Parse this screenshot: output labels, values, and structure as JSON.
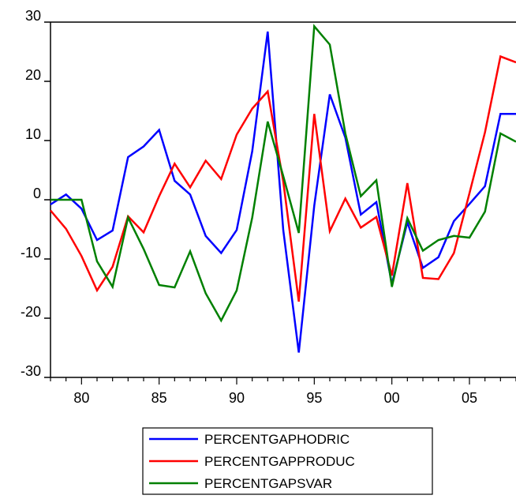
{
  "chart_data": {
    "type": "line",
    "title": "",
    "xlabel": "",
    "ylabel": "",
    "x": [
      1978,
      1979,
      1980,
      1981,
      1982,
      1983,
      1984,
      1985,
      1986,
      1987,
      1988,
      1989,
      1990,
      1991,
      1992,
      1993,
      1994,
      1995,
      1996,
      1997,
      1998,
      1999,
      2000,
      2001,
      2002,
      2003,
      2004,
      2005,
      2006,
      2007,
      2008
    ],
    "xlim": [
      1978,
      2008
    ],
    "ylim": [
      -30,
      30
    ],
    "yticks": [
      -30,
      -20,
      -10,
      0,
      10,
      20,
      30
    ],
    "ytick_labels": [
      "-30",
      "-20",
      "-10",
      "0",
      "10",
      "20",
      "30"
    ],
    "xticks": [
      1980,
      1985,
      1990,
      1995,
      2000,
      2005
    ],
    "xtick_labels": [
      "80",
      "85",
      "90",
      "95",
      "00",
      "05"
    ],
    "grid": false,
    "legend_position": "bottom",
    "series": [
      {
        "name": "PERCENTGAPHODRIC",
        "color": "#0000ff",
        "values": [
          -0.8,
          0.9,
          -1.5,
          -6.8,
          -5.2,
          7.2,
          9.0,
          11.8,
          3.2,
          0.9,
          -6.1,
          -9.0,
          -5.1,
          8.2,
          28.4,
          -5.1,
          -25.8,
          -1.0,
          17.8,
          10.5,
          -2.5,
          -0.4,
          -14.2,
          -3.8,
          -11.5,
          -9.7,
          -3.6,
          -0.7,
          2.3,
          14.5,
          14.5
        ]
      },
      {
        "name": "PERCENTGAPPRODUC",
        "color": "#ff0000",
        "values": [
          -1.8,
          -4.9,
          -9.5,
          -15.3,
          -11.3,
          -2.8,
          -5.5,
          0.6,
          6.1,
          2.1,
          6.6,
          3.5,
          11.0,
          15.4,
          18.3,
          3.1,
          -17.2,
          14.5,
          -5.3,
          0.2,
          -4.7,
          -2.9,
          -12.8,
          2.8,
          -13.2,
          -13.4,
          -9.0,
          1.1,
          11.4,
          24.2,
          23.2
        ]
      },
      {
        "name": "PERCENTGAPSVAR",
        "color": "#008000",
        "values": [
          0.0,
          0.0,
          0.0,
          -10.4,
          -14.7,
          -3.0,
          -8.3,
          -14.4,
          -14.8,
          -8.7,
          -15.8,
          -20.4,
          -15.3,
          -3.0,
          13.2,
          4.0,
          -5.6,
          29.3,
          26.2,
          11.2,
          0.6,
          3.3,
          -14.7,
          -3.1,
          -8.6,
          -6.8,
          -6.1,
          -6.4,
          -2.0,
          11.2,
          9.8
        ]
      }
    ]
  }
}
